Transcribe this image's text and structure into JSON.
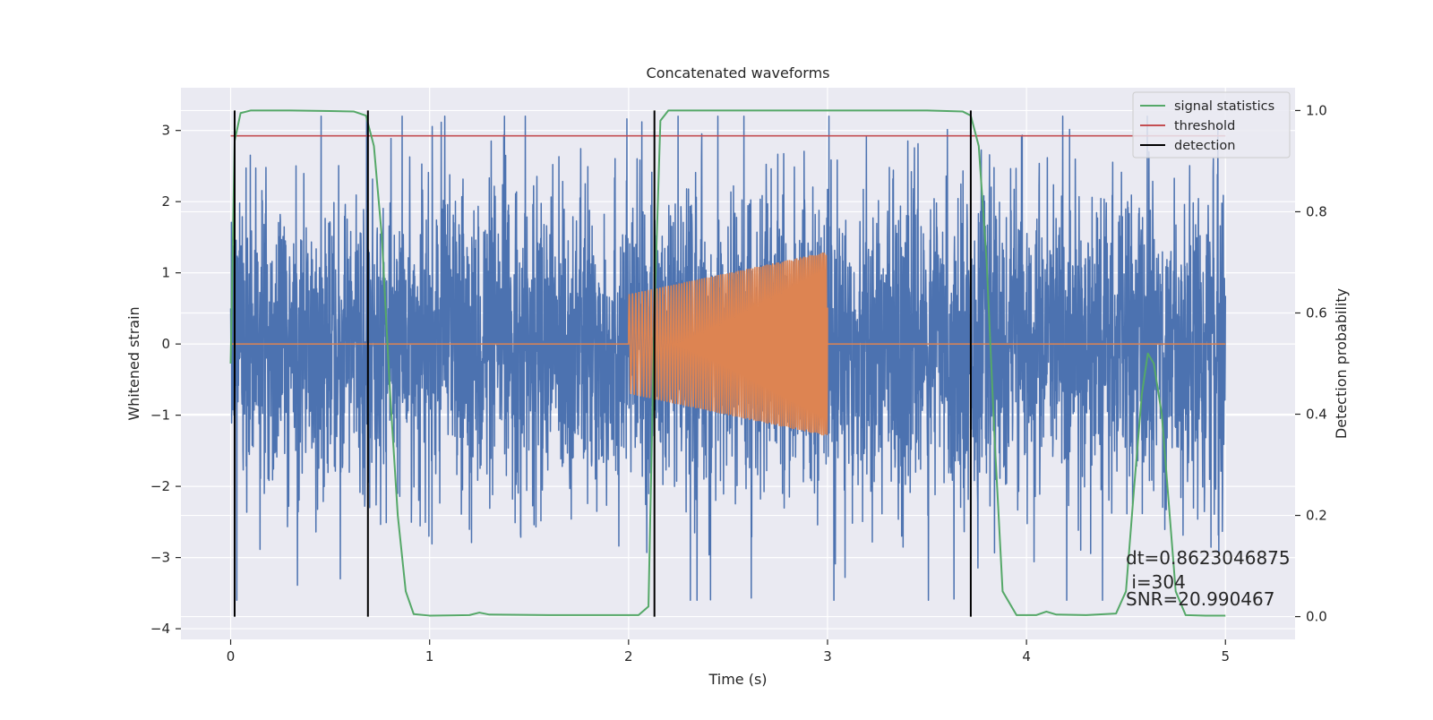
{
  "chart_data": {
    "type": "line",
    "title": "Concatenated waveforms",
    "xlabel": "Time (s)",
    "ylabel": "Whitened strain",
    "y2label": "Detection probability",
    "xlim": [
      -0.25,
      5.35
    ],
    "ylim": [
      -4.15,
      3.6
    ],
    "y2lim": [
      -0.045,
      1.045
    ],
    "xticks": [
      0,
      1,
      2,
      3,
      4,
      5
    ],
    "yticks": [
      -4,
      -3,
      -2,
      -1,
      0,
      1,
      2,
      3
    ],
    "y2ticks": [
      0.0,
      0.2,
      0.4,
      0.6,
      0.8,
      1.0
    ],
    "ytick_labels": [
      "−4",
      "−3",
      "−2",
      "−1",
      "0",
      "1",
      "2",
      "3"
    ],
    "y2tick_labels": [
      "0.0",
      "0.2",
      "0.4",
      "0.6",
      "0.8",
      "1.0"
    ],
    "grid": true,
    "legend_position": "top-right",
    "colors": {
      "background": "#eaeaf2",
      "strain": "#4c72b0",
      "injection": "#dd8452",
      "statistics": "#55a868",
      "threshold": "#c44e52",
      "detection": "#000000",
      "grid": "#ffffff"
    },
    "strain_series": {
      "name": "",
      "x_range": [
        0,
        5
      ],
      "approx_amplitude_range": [
        -3.6,
        3.2
      ],
      "note_value": "noise"
    },
    "injection_series": {
      "name": "",
      "start": 2.0,
      "end": 3.0,
      "amplitude_start": 0.7,
      "amplitude_end": 1.3
    },
    "series": [
      {
        "name": "signal statistics",
        "axis": "right",
        "x": [
          0.0,
          0.02,
          0.05,
          0.1,
          0.3,
          0.5,
          0.62,
          0.68,
          0.72,
          0.76,
          0.8,
          0.84,
          0.88,
          0.92,
          1.0,
          1.2,
          1.25,
          1.3,
          1.6,
          1.9,
          2.05,
          2.1,
          2.13,
          2.16,
          2.2,
          2.5,
          3.0,
          3.5,
          3.68,
          3.72,
          3.76,
          3.8,
          3.84,
          3.88,
          3.95,
          4.05,
          4.1,
          4.15,
          4.3,
          4.45,
          4.5,
          4.54,
          4.58,
          4.61,
          4.64,
          4.68,
          4.72,
          4.75,
          4.8,
          4.9,
          5.0
        ],
        "y": [
          0.5,
          0.94,
          0.995,
          1.0,
          1.0,
          0.999,
          0.998,
          0.99,
          0.93,
          0.75,
          0.45,
          0.2,
          0.05,
          0.005,
          0.002,
          0.003,
          0.008,
          0.004,
          0.003,
          0.003,
          0.003,
          0.02,
          0.6,
          0.98,
          1.0,
          1.0,
          1.0,
          1.0,
          0.998,
          0.99,
          0.93,
          0.7,
          0.35,
          0.05,
          0.003,
          0.003,
          0.01,
          0.004,
          0.003,
          0.006,
          0.05,
          0.25,
          0.44,
          0.52,
          0.5,
          0.4,
          0.2,
          0.05,
          0.003,
          0.002,
          0.002
        ]
      },
      {
        "name": "threshold",
        "axis": "right",
        "x": [
          0,
          5
        ],
        "y": [
          0.95,
          0.95
        ]
      },
      {
        "name": "detection",
        "axis": "right",
        "x": [
          0.02,
          0.69,
          2.13,
          3.72
        ],
        "y": [
          1.0,
          1.0,
          1.0,
          1.0
        ]
      }
    ],
    "legend": [
      "signal statistics",
      "threshold",
      "detection"
    ],
    "annotations": [
      "dt=0.8623046875",
      " i=304",
      "SNR=20.990467"
    ]
  }
}
